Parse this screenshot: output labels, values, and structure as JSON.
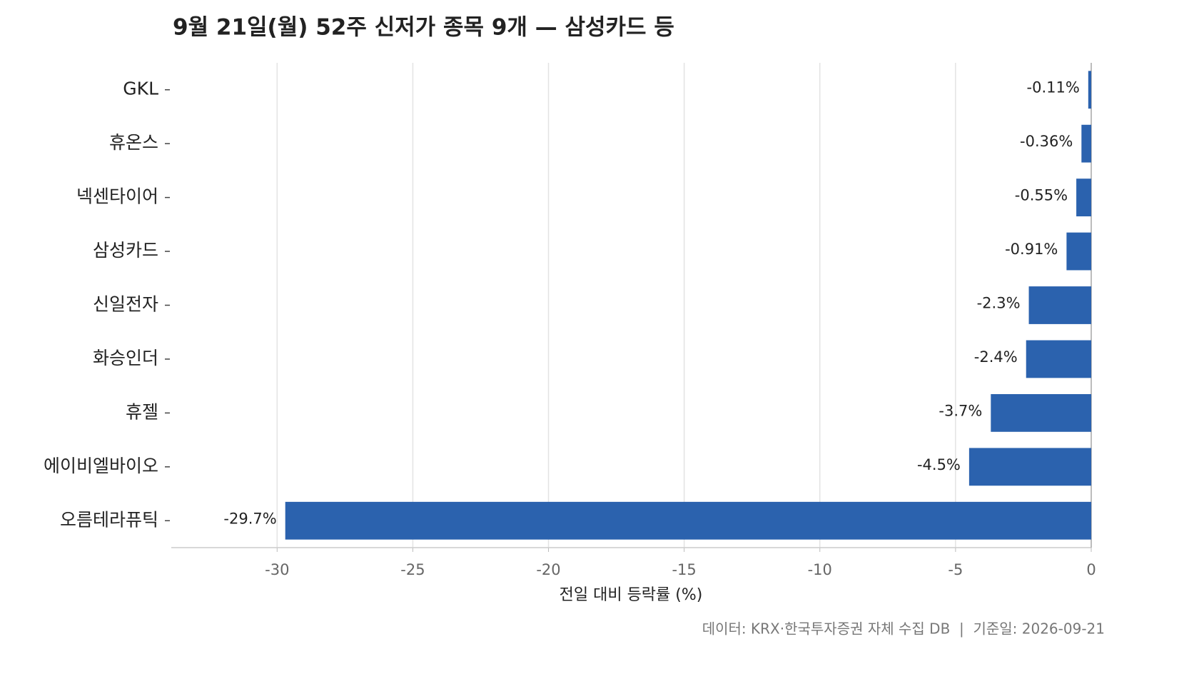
{
  "chart_data": {
    "type": "barh",
    "title": "9월 21일(월) 52주 신저가 종목 9개 — 삼성카드 등",
    "categories": [
      "GKL",
      "휴온스",
      "넥센타이어",
      "삼성카드",
      "신일전자",
      "화승인더",
      "휴젤",
      "에이비엘바이오",
      "오름테라퓨틱"
    ],
    "values": [
      -0.11,
      -0.36,
      -0.55,
      -0.91,
      -2.3,
      -2.4,
      -3.7,
      -4.5,
      -29.7
    ],
    "value_labels": [
      "-0.11%",
      "-0.36%",
      "-0.55%",
      "-0.91%",
      "-2.3%",
      "-2.4%",
      "-3.7%",
      "-4.5%",
      "-29.7%"
    ],
    "color": "#2b62ae",
    "xlabel": "전일 대비 등락률 (%)",
    "xlim": [
      -33.9,
      0
    ],
    "xticks": [
      -30,
      -25,
      -20,
      -15,
      -10,
      -5,
      0
    ],
    "grid": true,
    "footnote": "데이터: KRX·한국투자증권 자체 수집 DB  |  기준일: 2026-09-21"
  }
}
